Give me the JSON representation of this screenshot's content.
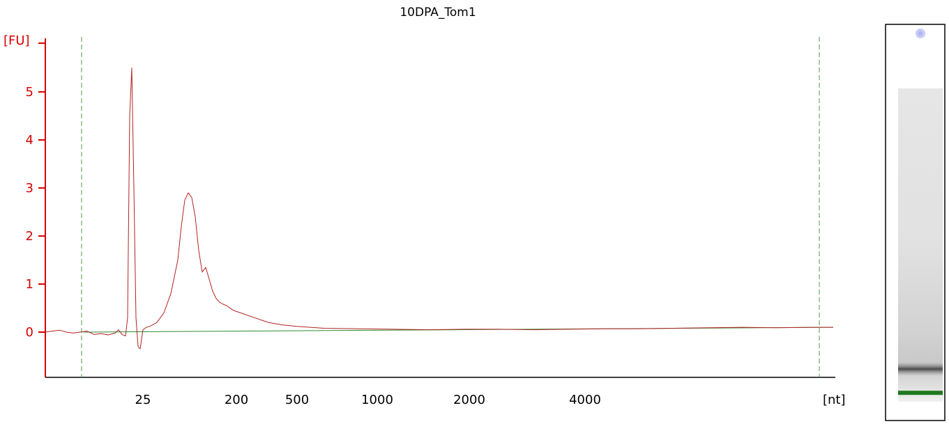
{
  "chart_data": {
    "type": "line",
    "title": "10DPA_Tom1",
    "ylabel": "[FU]",
    "xlabel": "[nt]",
    "ylim": [
      -0.9,
      6.0
    ],
    "y_ticks": [
      0,
      1,
      2,
      3,
      4,
      5
    ],
    "x_tick_labels": [
      "25",
      "200",
      "500",
      "1000",
      "2000",
      "4000"
    ],
    "grid": false,
    "colors": {
      "trace": "#b22222",
      "baseline": "#2e8b2e",
      "axis_y": "#d40000",
      "axis_x": "#000000",
      "marker": "#4c9a4c"
    },
    "series": [
      {
        "name": "",
        "x": [
          0,
          10,
          20,
          30,
          40,
          50,
          60,
          70,
          80,
          90,
          100,
          105,
          110,
          115,
          118,
          121,
          124,
          127,
          130,
          133,
          136,
          140,
          145,
          150,
          160,
          170,
          180,
          190,
          195,
          200,
          205,
          210,
          215,
          220,
          225,
          230,
          235,
          240,
          245,
          250,
          255,
          260,
          270,
          280,
          300,
          320,
          340,
          360,
          380,
          400,
          450,
          500,
          550,
          600,
          650,
          700,
          750,
          800,
          850,
          900,
          950,
          1000,
          1050,
          1100,
          1130
        ],
        "y": [
          0.0,
          0.02,
          0.04,
          0.0,
          -0.02,
          0.0,
          0.02,
          -0.05,
          -0.03,
          -0.06,
          -0.02,
          0.05,
          -0.05,
          -0.08,
          0.3,
          4.5,
          5.5,
          3.0,
          0.3,
          -0.3,
          -0.35,
          0.05,
          0.1,
          0.12,
          0.2,
          0.4,
          0.8,
          1.5,
          2.2,
          2.75,
          2.9,
          2.8,
          2.4,
          1.7,
          1.25,
          1.35,
          1.1,
          0.85,
          0.7,
          0.62,
          0.58,
          0.55,
          0.45,
          0.4,
          0.3,
          0.2,
          0.15,
          0.12,
          0.1,
          0.08,
          0.07,
          0.06,
          0.05,
          0.06,
          0.06,
          0.05,
          0.06,
          0.07,
          0.07,
          0.08,
          0.09,
          0.1,
          0.09,
          0.1,
          0.1
        ]
      }
    ],
    "baseline": {
      "x": [
        55,
        1130
      ],
      "y": [
        0.0,
        0.1
      ]
    },
    "markers": [
      52,
      1110
    ],
    "gel": {
      "band_level": 0.87,
      "marker_level": 0.93
    }
  }
}
